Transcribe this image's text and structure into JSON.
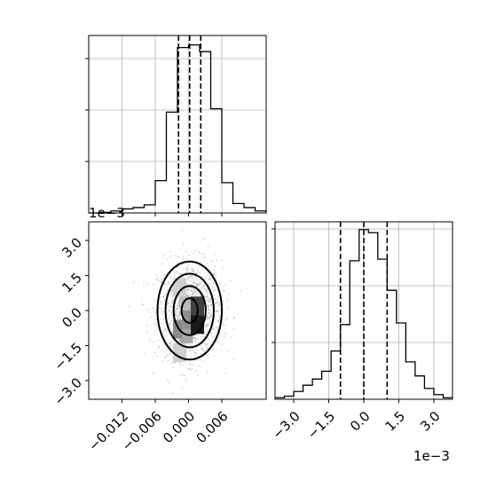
{
  "chart_data": [
    {
      "type": "histogram",
      "panel": "x-marginal",
      "bins": [
        -0.018,
        -0.016,
        -0.014,
        -0.012,
        -0.01,
        -0.008,
        -0.006,
        -0.004,
        -0.002,
        0.0,
        0.002,
        0.004,
        0.006,
        0.008,
        0.01,
        0.012,
        0.014
      ],
      "counts": [
        0,
        1,
        3,
        6,
        8,
        12,
        48,
        150,
        246,
        250,
        240,
        155,
        45,
        14,
        8,
        3,
        0
      ],
      "quantiles": [
        -0.0018,
        0.0002,
        0.0022
      ],
      "xlim": [
        -0.018,
        0.014
      ],
      "xticks": [
        "−0.012",
        "−0.006",
        "0.000",
        "0.006"
      ],
      "xtick_values": [
        -0.012,
        -0.006,
        0.0,
        0.006
      ]
    },
    {
      "type": "histogram",
      "panel": "y-marginal",
      "bins": [
        -3.8,
        -3.4,
        -3.0,
        -2.6,
        -2.2,
        -1.8,
        -1.4,
        -1.0,
        -0.6,
        -0.2,
        0.2,
        0.6,
        1.0,
        1.4,
        1.8,
        2.2,
        2.6,
        3.0,
        3.4,
        3.8
      ],
      "counts": [
        2,
        4,
        10,
        18,
        26,
        36,
        62,
        96,
        178,
        218,
        214,
        180,
        140,
        98,
        48,
        30,
        14,
        6,
        2
      ],
      "quantiles": [
        -1.0,
        0.0,
        1.0
      ],
      "xlim": [
        -3.8,
        3.8
      ],
      "xticks": [
        "−3.0",
        "−1.5",
        "0.0",
        "1.5",
        "3.0"
      ],
      "xtick_values": [
        -3.0,
        -1.5,
        0.0,
        1.5,
        3.0
      ],
      "offset": "1e−3"
    },
    {
      "type": "scatter",
      "panel": "2d-density",
      "xlim": [
        -0.018,
        0.014
      ],
      "ylim": [
        -3.8,
        3.8
      ],
      "yticks": [
        "−3.0",
        "−1.5",
        "0.0",
        "1.5",
        "3.0"
      ],
      "ytick_values": [
        -3.0,
        -1.5,
        0.0,
        1.5,
        3.0
      ],
      "y_offset": "1e−3",
      "xticks": [
        "−0.012",
        "−0.006",
        "0.000",
        "0.006"
      ],
      "xtick_values": [
        -0.012,
        -0.006,
        0.0,
        0.006
      ],
      "center": [
        0.0002,
        0.0
      ],
      "sigma": [
        0.0029,
        1.05
      ],
      "contour_levels_sigma": [
        0.5,
        1.0,
        1.5,
        2.0
      ]
    }
  ]
}
